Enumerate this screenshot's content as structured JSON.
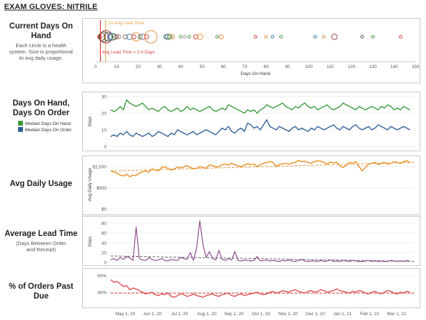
{
  "page_title": "EXAM GLOVES: NITRILE",
  "rows": [
    {
      "title": "Current Days On Hand",
      "subtitle": "Each circle is a health system. Size is proportional to avg daily usage."
    },
    {
      "title": "Days On Hand, Days On Order",
      "legend": [
        {
          "label": "Median Days On Hand",
          "color": "#3a9a3a"
        },
        {
          "label": "Median Days On Order",
          "color": "#2f5f9a"
        }
      ]
    },
    {
      "title": "Avg Daily Usage"
    },
    {
      "title": "Average Lead Time",
      "subtitle": "(Days Between Order and Receipt)"
    },
    {
      "title": "% of Orders Past Due"
    }
  ],
  "date_ticks": [
    "May 1, 20",
    "Jun 1, 20",
    "Jul 1, 20",
    "Aug 1, 20",
    "Sep 1, 20",
    "Oct 1, 20",
    "Nov 1, 20",
    "Dec 1, 20",
    "Jan 1, 21",
    "Feb 1, 21",
    "Mar 1, 21"
  ],
  "chart_data": [
    {
      "type": "scatter",
      "xlabel": "Days On Hand",
      "xlim": [
        0,
        150
      ],
      "xticks": [
        0,
        10,
        20,
        30,
        40,
        50,
        60,
        70,
        80,
        90,
        100,
        110,
        120,
        130,
        140,
        150
      ],
      "reference_lines": [
        {
          "label": "Avg Lead Time = 2.4 Days",
          "x": 2.4,
          "color": "#d94040"
        },
        {
          "label": "2x Avg Lead Time",
          "x": 4.8,
          "color": "#e8a040"
        }
      ],
      "points": [
        {
          "x": 2,
          "size": 3,
          "color": "#d94040"
        },
        {
          "x": 3,
          "size": 5,
          "color": "#8b5a2b"
        },
        {
          "x": 4,
          "size": 7,
          "color": "#555555"
        },
        {
          "x": 5,
          "size": 9,
          "color": "#9b3a3a"
        },
        {
          "x": 6,
          "size": 6,
          "color": "#444444"
        },
        {
          "x": 7,
          "size": 4,
          "color": "#6a4a8a"
        },
        {
          "x": 8,
          "size": 5,
          "color": "#3a7aaa"
        },
        {
          "x": 9,
          "size": 4,
          "color": "#3a9a3a"
        },
        {
          "x": 10,
          "size": 3,
          "color": "#d94040"
        },
        {
          "x": 11,
          "size": 3,
          "color": "#999999"
        },
        {
          "x": 14,
          "size": 3,
          "color": "#8a6a4a"
        },
        {
          "x": 16,
          "size": 4,
          "color": "#3a7aaa"
        },
        {
          "x": 18,
          "size": 3,
          "color": "#d94040"
        },
        {
          "x": 19,
          "size": 6,
          "color": "#e89040"
        },
        {
          "x": 21,
          "size": 3,
          "color": "#3a9a3a"
        },
        {
          "x": 22,
          "size": 4,
          "color": "#9b5a9b"
        },
        {
          "x": 24,
          "size": 3,
          "color": "#d94040"
        },
        {
          "x": 26,
          "size": 9,
          "color": "#e89040"
        },
        {
          "x": 33,
          "size": 3,
          "color": "#3a7aaa"
        },
        {
          "x": 34,
          "size": 4,
          "color": "#555555"
        },
        {
          "x": 35,
          "size": 3,
          "color": "#3a9a3a"
        },
        {
          "x": 36,
          "size": 3,
          "color": "#e89040"
        },
        {
          "x": 40,
          "size": 2,
          "color": "#3a9a3a"
        },
        {
          "x": 42,
          "size": 2,
          "color": "#999999"
        },
        {
          "x": 44,
          "size": 2,
          "color": "#3a9a3a"
        },
        {
          "x": 47,
          "size": 3,
          "color": "#d94040"
        },
        {
          "x": 49,
          "size": 4,
          "color": "#e89040"
        },
        {
          "x": 57,
          "size": 2,
          "color": "#3a9a3a"
        },
        {
          "x": 59,
          "size": 3,
          "color": "#e89040"
        },
        {
          "x": 75,
          "size": 2,
          "color": "#d94040"
        },
        {
          "x": 80,
          "size": 2,
          "color": "#e89040"
        },
        {
          "x": 83,
          "size": 2,
          "color": "#3a7aaa"
        },
        {
          "x": 87,
          "size": 2,
          "color": "#3a9a3a"
        },
        {
          "x": 103,
          "size": 2,
          "color": "#3a7aaa"
        },
        {
          "x": 107,
          "size": 2,
          "color": "#e89040"
        },
        {
          "x": 112,
          "size": 4,
          "color": "#9b3a3a"
        },
        {
          "x": 125,
          "size": 2,
          "color": "#555555"
        },
        {
          "x": 130,
          "size": 2,
          "color": "#3a9a3a"
        },
        {
          "x": 143,
          "size": 2,
          "color": "#d94040"
        }
      ]
    },
    {
      "type": "line",
      "ylabel": "Days",
      "ylim": [
        0,
        30
      ],
      "yticks": [
        0,
        10,
        20,
        30
      ],
      "series": [
        {
          "name": "Median Days On Hand",
          "color": "#3a9a3a",
          "values": [
            22,
            21,
            22,
            24,
            22,
            28,
            26,
            25,
            24,
            25,
            26,
            24,
            22,
            23,
            22,
            21,
            23,
            24,
            22,
            21,
            22,
            23,
            21,
            22,
            24,
            22,
            23,
            22,
            21,
            22,
            23,
            24,
            22,
            21,
            22,
            23,
            22,
            25,
            24,
            23,
            22,
            21,
            20,
            22,
            21,
            22,
            20,
            22,
            23,
            25,
            24,
            23,
            24,
            25,
            26,
            24,
            23,
            22,
            24,
            23,
            25,
            26,
            24,
            23,
            24,
            22,
            23,
            24,
            25,
            23,
            22,
            23,
            24,
            26,
            25,
            24,
            23,
            22,
            24,
            23,
            22,
            23,
            24,
            23,
            22,
            24,
            23,
            25,
            24,
            22,
            23,
            22,
            24,
            23,
            22
          ]
        },
        {
          "name": "Median Days On Order",
          "color": "#2f5f9a",
          "values": [
            6,
            7,
            6,
            8,
            7,
            9,
            7,
            6,
            8,
            7,
            6,
            7,
            8,
            6,
            7,
            9,
            8,
            7,
            6,
            8,
            7,
            10,
            9,
            8,
            7,
            8,
            9,
            7,
            8,
            9,
            10,
            9,
            8,
            7,
            9,
            11,
            10,
            12,
            9,
            8,
            10,
            11,
            9,
            14,
            13,
            11,
            12,
            10,
            13,
            16,
            12,
            11,
            10,
            12,
            11,
            10,
            9,
            11,
            12,
            10,
            11,
            10,
            9,
            11,
            10,
            12,
            11,
            10,
            11,
            12,
            13,
            11,
            10,
            12,
            11,
            10,
            12,
            13,
            11,
            10,
            11,
            12,
            10,
            11,
            13,
            12,
            11,
            10,
            12,
            11,
            10,
            11,
            12,
            11,
            10
          ]
        }
      ]
    },
    {
      "type": "line",
      "ylabel": "Avg Daily Usage",
      "ylim": [
        0,
        1150
      ],
      "yticks": [
        "$0",
        "$500",
        "$1,000"
      ],
      "ytick_values": [
        0,
        500,
        1000
      ],
      "trendline": [
        900,
        1100
      ],
      "series": [
        {
          "name": "Avg Daily Usage",
          "color": "#e88a1a",
          "values": [
            900,
            880,
            850,
            800,
            780,
            820,
            760,
            800,
            790,
            850,
            880,
            900,
            870,
            950,
            920,
            900,
            980,
            1000,
            960,
            920,
            950,
            990,
            970,
            1000,
            1020,
            980,
            950,
            960,
            1000,
            980,
            960,
            1040,
            1030,
            990,
            1000,
            1050,
            1060,
            1040,
            1080,
            1050,
            1020,
            1000,
            1040,
            1070,
            1050,
            1060,
            1000,
            1050,
            1080,
            1100,
            1120,
            1100,
            1000,
            1050,
            1070,
            1080,
            1060,
            1090,
            1100,
            1150,
            1120,
            1130,
            1100,
            1080,
            1120,
            1140,
            1130,
            1100,
            1060,
            1110,
            1090,
            1100,
            1020,
            980,
            1040,
            1100,
            1080,
            1120,
            1000,
            900,
            980,
            1060,
            1080,
            1100,
            1050,
            1080,
            1100,
            1060,
            1080,
            1120,
            1100,
            1080,
            1120,
            1140,
            1100
          ]
        }
      ]
    },
    {
      "type": "line",
      "ylabel": "Days",
      "ylim": [
        0,
        85
      ],
      "yticks": [
        0,
        20,
        40,
        60,
        80
      ],
      "trendline": [
        13,
        2
      ],
      "series": [
        {
          "name": "Average Lead Time",
          "color": "#8e4a8e",
          "values": [
            5,
            8,
            4,
            10,
            6,
            12,
            9,
            4,
            72,
            8,
            5,
            4,
            10,
            6,
            4,
            5,
            8,
            4,
            3,
            6,
            5,
            4,
            10,
            8,
            6,
            20,
            4,
            30,
            85,
            35,
            10,
            22,
            8,
            5,
            25,
            6,
            4,
            8,
            5,
            22,
            4,
            3,
            5,
            4,
            3,
            4,
            12,
            3,
            4,
            5,
            3,
            4,
            3,
            2,
            4,
            3,
            5,
            3,
            2,
            4,
            6,
            3,
            2,
            3,
            3,
            2,
            4,
            2,
            3,
            5,
            2,
            3,
            2,
            4,
            3,
            2,
            4,
            3,
            2,
            2,
            3,
            4,
            2,
            3,
            2,
            3,
            2,
            2,
            4,
            3,
            2,
            3,
            2,
            4,
            2
          ]
        }
      ]
    },
    {
      "type": "line",
      "ylim": [
        25,
        65
      ],
      "yticks": [
        "40%",
        "60%"
      ],
      "ytick_values": [
        40,
        60
      ],
      "trendline": [
        39,
        39
      ],
      "series": [
        {
          "name": "% of Orders Past Due",
          "color": "#d94040",
          "values": [
            55,
            52,
            53,
            50,
            47,
            48,
            43,
            45,
            44,
            42,
            40,
            38,
            39,
            40,
            37,
            36,
            38,
            37,
            39,
            35,
            34,
            36,
            38,
            37,
            35,
            36,
            38,
            36,
            35,
            34,
            36,
            37,
            38,
            36,
            35,
            37,
            38,
            39,
            36,
            35,
            37,
            38,
            36,
            37,
            38,
            39,
            40,
            38,
            37,
            38,
            40,
            41,
            39,
            40,
            42,
            41,
            40,
            42,
            43,
            41,
            40,
            39,
            41,
            42,
            40,
            41,
            43,
            42,
            40,
            41,
            42,
            44,
            42,
            41,
            40,
            39,
            41,
            40,
            42,
            41,
            39,
            38,
            40,
            41,
            39,
            38,
            40,
            42,
            41,
            39,
            38,
            40,
            39,
            41,
            40
          ]
        }
      ]
    }
  ]
}
